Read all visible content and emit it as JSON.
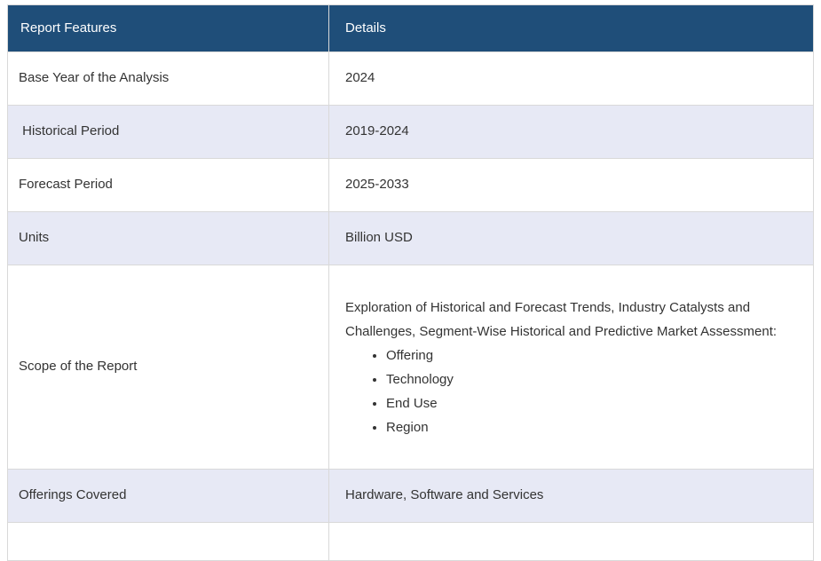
{
  "colors": {
    "header_bg": "#1F4E79",
    "header_text": "#FFFFFF",
    "row_bg": "#FFFFFF",
    "row_alt_bg": "#E7E9F5",
    "border": "#D9D9D9",
    "text": "#333333"
  },
  "table": {
    "headers": {
      "feature": "Report Features",
      "detail": "Details"
    },
    "rows": [
      {
        "feature": "Base Year of the Analysis",
        "detail": "2024"
      },
      {
        "feature": " Historical Period",
        "detail": "2019-2024"
      },
      {
        "feature": "Forecast Period",
        "detail": "2025-2033"
      },
      {
        "feature": "Units",
        "detail": "Billion USD"
      },
      {
        "feature": "Scope of the Report",
        "detail_intro": "Exploration of Historical and Forecast Trends, Industry Catalysts and Challenges, Segment-Wise Historical and Predictive Market Assessment:",
        "bullets": [
          "Offering",
          "Technology",
          "End Use",
          "Region"
        ]
      },
      {
        "feature": "Offerings Covered",
        "detail": "Hardware, Software and Services"
      }
    ]
  }
}
